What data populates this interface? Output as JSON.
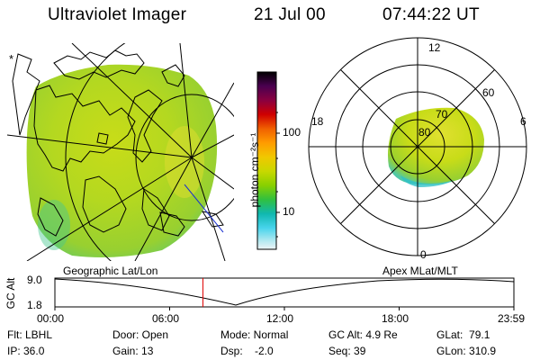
{
  "header": {
    "title": "Ultraviolet Imager",
    "date": "21 Jul 00",
    "time": "07:44:22 UT"
  },
  "colorbar": {
    "unit_label": "photon cm⁻²s⁻¹",
    "ticks": [
      "100",
      "10"
    ],
    "colors": [
      "#000000",
      "#3c003c",
      "#7a003c",
      "#c80000",
      "#e84000",
      "#ff8c00",
      "#f0c000",
      "#c8d800",
      "#88d000",
      "#30c040",
      "#10b8a8",
      "#40d0e8",
      "#a8e8f0",
      "#e8f0f4"
    ]
  },
  "geo_map": {
    "label": "Geographic Lat/Lon",
    "pole_marker": "*"
  },
  "polar_plot": {
    "label": "Apex MLat/MLT",
    "mlt_labels": {
      "top": "12",
      "left": "18",
      "right": "6",
      "bottom": "0"
    },
    "lat_labels": [
      "60",
      "70",
      "80"
    ]
  },
  "altitude_plot": {
    "ylabel": "GC Alt",
    "yticks": [
      "9.0",
      "1.8"
    ],
    "xticks": [
      "00:00",
      "06:00",
      "12:00",
      "18:00",
      "23:59"
    ],
    "current_time_marker_hours": 7.74
  },
  "info": {
    "flt": "Flt: LBHL",
    "ip": "IP: 36.0",
    "door": "Door: Open",
    "gain": "Gain: 13",
    "mode": "Mode: Normal",
    "dsp": "Dsp:    -2.0",
    "gc_alt": "GC Alt: 4.9 Re",
    "seq": "Seq: 39",
    "glat": "GLat:  79.1",
    "glon": "GLon: 310.9"
  }
}
